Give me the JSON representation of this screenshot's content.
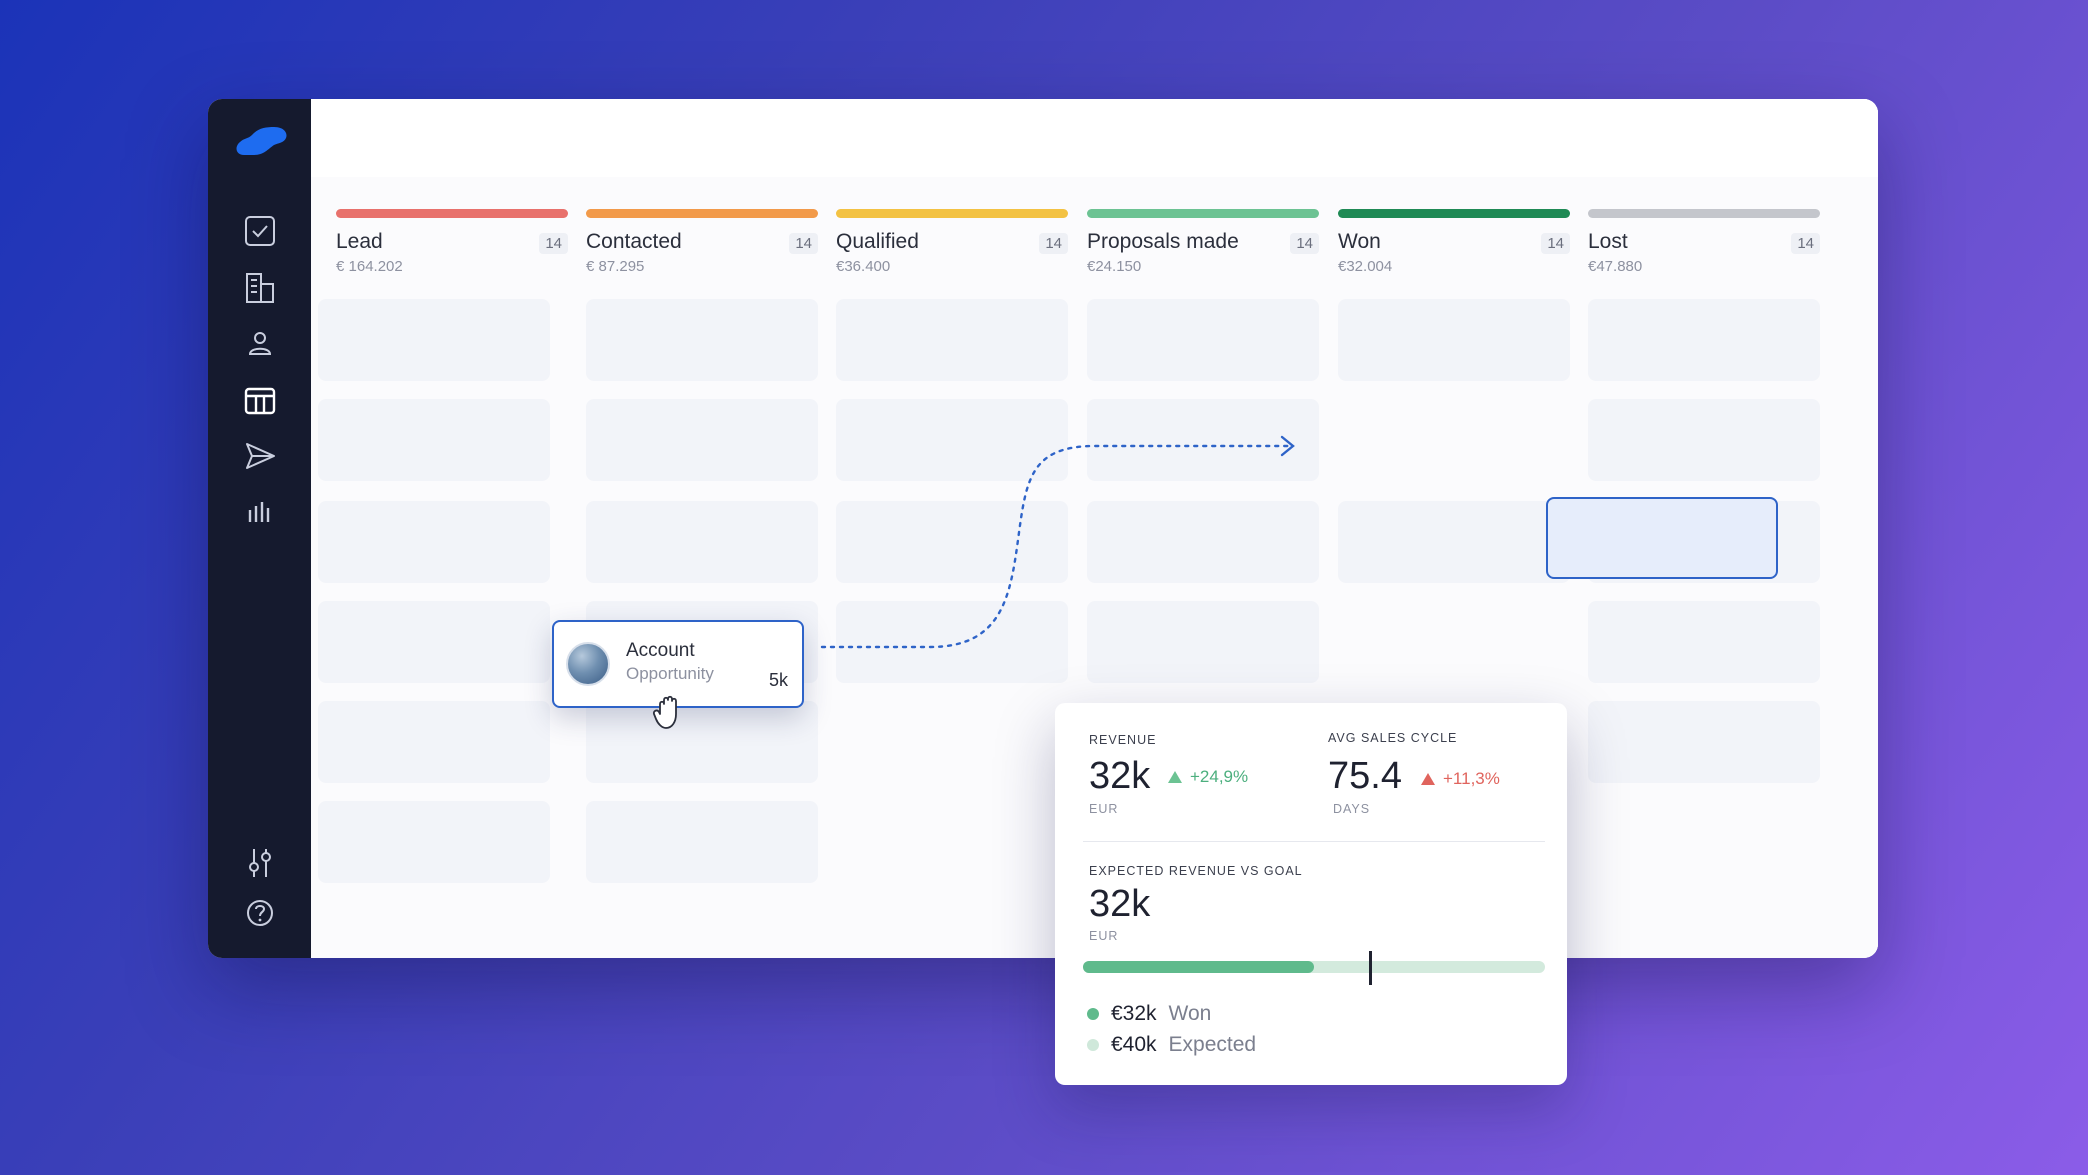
{
  "stages": [
    {
      "name": "Lead",
      "count": "14",
      "amount": "€ 164.202",
      "color": "#e8716c"
    },
    {
      "name": "Contacted",
      "count": "14",
      "amount": "€ 87.295",
      "color": "#f29a4a"
    },
    {
      "name": "Qualified",
      "count": "14",
      "amount": "€36.400",
      "color": "#f3c243"
    },
    {
      "name": "Proposals made",
      "count": "14",
      "amount": "€24.150",
      "color": "#6cc393"
    },
    {
      "name": "Won",
      "count": "14",
      "amount": "€32.004",
      "color": "#1f8a55"
    },
    {
      "name": "Lost",
      "count": "14",
      "amount": "€47.880",
      "color": "#c4c6cc"
    }
  ],
  "drag_card": {
    "title": "Account",
    "subtitle": "Opportunity",
    "value": "5k"
  },
  "stats": {
    "revenue": {
      "label": "REVENUE",
      "value": "32k",
      "unit": "EUR",
      "change": "+24,9%",
      "change_color": "#4caf7e"
    },
    "cycle": {
      "label": "AVG SALES CYCLE",
      "value": "75.4",
      "unit": "DAYS",
      "change": "+11,3%",
      "change_color": "#e0645d"
    },
    "expected": {
      "label": "EXPECTED REVENUE VS GOAL",
      "value": "32k",
      "unit": "EUR",
      "progress_fraction": 0.5,
      "goal_fraction": 0.62,
      "won_value": "€32k",
      "won_label": "Won",
      "won_color": "#5fba8c",
      "expected_value": "€40k",
      "expected_label": "Expected",
      "expected_color": "#cfe8da"
    }
  },
  "colors": {
    "accent": "#2e63c8",
    "sidebar": "#151a2e",
    "logo": "#1e6cf0"
  },
  "icons": [
    "logo-icon",
    "tasks-icon",
    "companies-icon",
    "contacts-icon",
    "deals-board-icon",
    "campaigns-icon",
    "reports-icon",
    "settings-sliders-icon",
    "help-icon",
    "grab-hand-icon"
  ]
}
